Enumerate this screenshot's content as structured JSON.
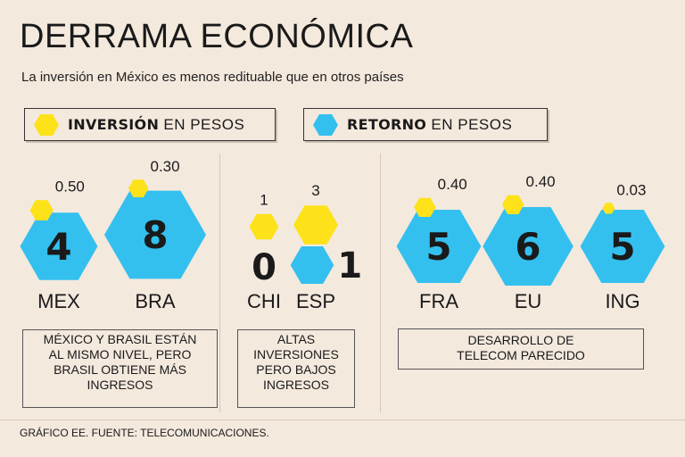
{
  "title": "DERRAMA ECONÓMICA",
  "subtitle": "La inversión en México es menos redituable que en otros países",
  "legend": {
    "investment": {
      "bold": "INVERSIÓN",
      "rest": " EN PESOS",
      "color": "#fde21a",
      "icon": "yellow-hexagon-icon"
    },
    "return": {
      "bold": "RETORNO",
      "rest": " EN PESOS",
      "color": "#34c0ef",
      "icon": "blue-hexagon-icon"
    }
  },
  "notes": {
    "group1": [
      "MÉXICO Y BRASIL ESTÁN",
      "AL MISMO NIVEL, PERO",
      "BRASIL OBTIENE MÁS",
      "INGRESOS"
    ],
    "group2": [
      "ALTAS",
      "INVERSIONES",
      "PERO BAJOS",
      "INGRESOS"
    ],
    "group3": [
      "DESARROLLO DE",
      "TELECOM PARECIDO"
    ]
  },
  "source": "GRÁFICO EE. FUENTE: TELECOMUNICACIONES.",
  "chart_data": {
    "type": "bubble",
    "categories": [
      "MEX",
      "BRA",
      "CHI",
      "ESP",
      "FRA",
      "EU",
      "ING"
    ],
    "series": [
      {
        "name": "INVERSIÓN EN PESOS",
        "color": "#fde21a",
        "values": [
          0.5,
          0.3,
          1,
          3,
          0.4,
          0.4,
          0.03
        ],
        "labels": [
          "0.50",
          "0.30",
          "1",
          "3",
          "0.40",
          "0.40",
          "0.03"
        ]
      },
      {
        "name": "RETORNO EN PESOS",
        "color": "#34c0ef",
        "values": [
          4,
          8,
          0,
          1,
          5,
          6,
          5
        ],
        "labels": [
          "4",
          "8",
          "0",
          "1",
          "5",
          "6",
          "5"
        ]
      }
    ],
    "groups": [
      [
        "MEX",
        "BRA"
      ],
      [
        "CHI",
        "ESP"
      ],
      [
        "FRA",
        "EU",
        "ING"
      ]
    ]
  }
}
